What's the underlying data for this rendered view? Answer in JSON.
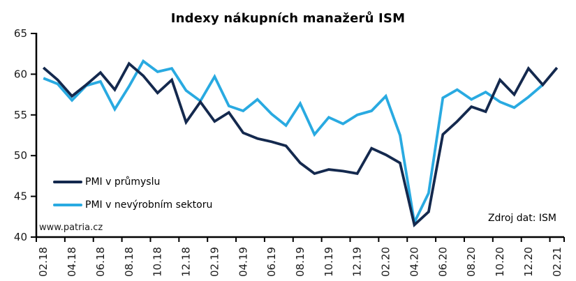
{
  "page": {
    "background": "#ffffff"
  },
  "chart": {
    "title": "Indexy nákupních manažerů ISM",
    "watermark": "www.patria.cz",
    "source_note": "Zdroj dat: ISM",
    "axis_color": "#000000"
  },
  "chart_data": {
    "type": "line",
    "title": "Indexy nákupních manažerů ISM",
    "x": [
      "02.18",
      "03.18",
      "04.18",
      "05.18",
      "06.18",
      "07.18",
      "08.18",
      "09.18",
      "10.18",
      "11.18",
      "12.18",
      "01.19",
      "02.19",
      "03.19",
      "04.19",
      "05.19",
      "06.19",
      "07.19",
      "08.19",
      "09.19",
      "10.19",
      "11.19",
      "12.19",
      "01.20",
      "02.20",
      "03.20",
      "04.20",
      "05.20",
      "06.20",
      "07.20",
      "08.20",
      "09.20",
      "10.20",
      "11.20",
      "12.20",
      "01.21",
      "02.21"
    ],
    "x_tick_labels": [
      "02.18",
      "04.18",
      "06.18",
      "08.18",
      "10.18",
      "12.18",
      "02.19",
      "04.19",
      "06.19",
      "08.19",
      "10.19",
      "12.19",
      "02.20",
      "04.20",
      "06.20",
      "08.20",
      "10.20",
      "12.20",
      "02.21"
    ],
    "series": [
      {
        "name": "PMI v průmyslu",
        "color": "#14294E",
        "values": [
          60.8,
          59.3,
          57.3,
          58.7,
          60.2,
          58.1,
          61.3,
          59.8,
          57.7,
          59.3,
          54.1,
          56.6,
          54.2,
          55.3,
          52.8,
          52.1,
          51.7,
          51.2,
          49.1,
          47.8,
          48.3,
          48.1,
          47.8,
          50.9,
          50.1,
          49.1,
          41.5,
          43.1,
          52.6,
          54.2,
          56.0,
          55.4,
          59.3,
          57.5,
          60.7,
          58.7,
          60.8
        ]
      },
      {
        "name": "PMI v nevýrobním sektoru",
        "color": "#29AAE1",
        "values": [
          59.5,
          58.8,
          56.8,
          58.6,
          59.1,
          55.7,
          58.5,
          61.6,
          60.3,
          60.7,
          58.0,
          56.7,
          59.7,
          56.1,
          55.5,
          56.9,
          55.1,
          53.7,
          56.4,
          52.6,
          54.7,
          53.9,
          55.0,
          55.5,
          57.3,
          52.5,
          41.8,
          45.4,
          57.1,
          58.1,
          56.9,
          57.8,
          56.6,
          55.9,
          57.2,
          58.7
        ]
      }
    ],
    "ylim": [
      40,
      65
    ],
    "yticks": [
      40,
      45,
      50,
      55,
      60,
      65
    ],
    "grid": false,
    "legend_position": "inside-left",
    "xlabel": "",
    "ylabel": "",
    "watermark": "www.patria.cz",
    "source": "Zdroj dat: ISM"
  }
}
